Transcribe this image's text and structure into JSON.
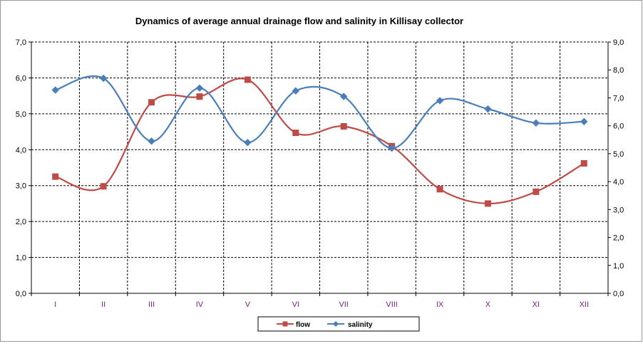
{
  "chart_data": {
    "type": "line",
    "title": "Dynamics  of average annual drainage flow and salinity in Killisay collector",
    "categories": [
      "I",
      "II",
      "III",
      "IV",
      "V",
      "VI",
      "VII",
      "VIII",
      "IX",
      "X",
      "XI",
      "XII"
    ],
    "y_left": {
      "ylim": [
        0,
        7
      ],
      "ticks": [
        "0,0",
        "1,0",
        "2,0",
        "3,0",
        "4,0",
        "5,0",
        "6,0",
        "7,0"
      ]
    },
    "y_right": {
      "ylim": [
        0,
        9
      ],
      "ticks": [
        "0,0",
        "1,0",
        "2,0",
        "3,0",
        "4,0",
        "5,0",
        "6,0",
        "7,0",
        "8,0",
        "9,0"
      ]
    },
    "grid": "dashed",
    "legend_position": "bottom",
    "series": [
      {
        "name": "flow",
        "axis": "left",
        "color": "#BE4B48",
        "marker": "square",
        "values": [
          3.25,
          2.98,
          5.32,
          5.48,
          5.95,
          4.47,
          4.65,
          4.1,
          2.9,
          2.5,
          2.83,
          3.62
        ]
      },
      {
        "name": "salinity",
        "axis": "right",
        "color": "#4A7EBB",
        "marker": "diamond",
        "values": [
          7.28,
          7.7,
          5.45,
          7.35,
          5.4,
          7.25,
          7.05,
          5.2,
          6.9,
          6.6,
          6.1,
          6.15
        ]
      }
    ]
  }
}
